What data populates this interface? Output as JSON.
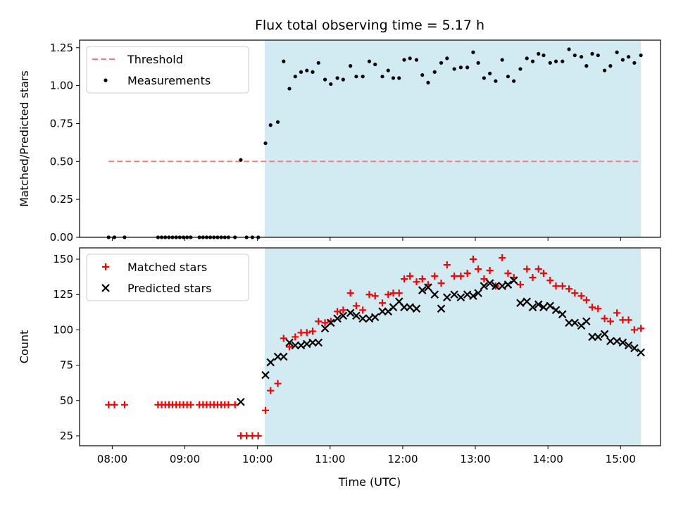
{
  "figure": {
    "title": "Flux total observing time = 5.17 h",
    "xlabel": "Time (UTC)"
  },
  "colors": {
    "shade": "#add8e6",
    "threshold": "#f08080",
    "matched": "#ff0000",
    "predicted": "#000000"
  },
  "chart_data": [
    {
      "type": "scatter",
      "panel": "top",
      "ylabel": "Matched/Predicted stars",
      "xlim_hours": [
        7.55,
        15.55
      ],
      "ylim": [
        0,
        1.3
      ],
      "xticks_hours": [
        8,
        9,
        10,
        11,
        12,
        13,
        14,
        15
      ],
      "xtick_labels": [
        "08:00",
        "09:00",
        "10:00",
        "11:00",
        "12:00",
        "13:00",
        "14:00",
        "15:00"
      ],
      "yticks": [
        0,
        0.25,
        0.5,
        0.75,
        1.0,
        1.25
      ],
      "ytick_labels": [
        "0.00",
        "0.25",
        "0.50",
        "0.75",
        "1.00",
        "1.25"
      ],
      "shaded_span_hours": [
        10.1,
        15.28
      ],
      "legend": {
        "location": "upper left",
        "entries": [
          "Threshold",
          "Measurements"
        ]
      },
      "threshold": {
        "name": "Threshold",
        "value": 0.5,
        "x_hours": [
          7.95,
          15.28
        ],
        "style": "dashed"
      },
      "series": [
        {
          "name": "Measurements",
          "marker": "dot",
          "x_hours": [
            7.95,
            8.03,
            8.17,
            8.63,
            8.68,
            8.73,
            8.78,
            8.83,
            8.88,
            8.93,
            8.98,
            9.03,
            9.08,
            9.2,
            9.25,
            9.3,
            9.35,
            9.4,
            9.45,
            9.5,
            9.55,
            9.6,
            9.69,
            9.77,
            9.85,
            9.93,
            10.01,
            10.11,
            10.18,
            10.28,
            10.36,
            10.44,
            10.52,
            10.6,
            10.68,
            10.76,
            10.84,
            10.93,
            11.01,
            11.1,
            11.18,
            11.28,
            11.36,
            11.45,
            11.54,
            11.62,
            11.72,
            11.8,
            11.87,
            11.95,
            12.02,
            12.1,
            12.19,
            12.27,
            12.35,
            12.44,
            12.53,
            12.61,
            12.71,
            12.8,
            12.89,
            12.97,
            13.04,
            13.12,
            13.2,
            13.28,
            13.37,
            13.45,
            13.53,
            13.62,
            13.71,
            13.79,
            13.87,
            13.94,
            14.03,
            14.11,
            14.2,
            14.29,
            14.37,
            14.46,
            14.53,
            14.61,
            14.69,
            14.78,
            14.86,
            14.95,
            15.03,
            15.11,
            15.19,
            15.28
          ],
          "y": [
            0,
            0,
            0,
            0,
            0,
            0,
            0,
            0,
            0,
            0,
            0,
            0,
            0,
            0,
            0,
            0,
            0,
            0,
            0,
            0,
            0,
            0,
            0,
            0.51,
            0,
            0,
            0,
            0.62,
            0.74,
            0.76,
            1.16,
            0.98,
            1.06,
            1.09,
            1.1,
            1.09,
            1.15,
            1.04,
            1.01,
            1.05,
            1.04,
            1.13,
            1.06,
            1.06,
            1.16,
            1.14,
            1.06,
            1.1,
            1.05,
            1.05,
            1.17,
            1.18,
            1.17,
            1.07,
            1.02,
            1.09,
            1.15,
            1.18,
            1.11,
            1.12,
            1.12,
            1.22,
            1.15,
            1.05,
            1.08,
            1.03,
            1.17,
            1.06,
            1.03,
            1.11,
            1.18,
            1.16,
            1.21,
            1.2,
            1.15,
            1.16,
            1.16,
            1.24,
            1.2,
            1.19,
            1.13,
            1.21,
            1.2,
            1.1,
            1.13,
            1.22,
            1.17,
            1.19,
            1.15,
            1.2
          ]
        }
      ]
    },
    {
      "type": "scatter",
      "panel": "bottom",
      "ylabel": "Count",
      "xlim_hours": [
        7.55,
        15.55
      ],
      "ylim": [
        18,
        158
      ],
      "xticks_hours": [
        8,
        9,
        10,
        11,
        12,
        13,
        14,
        15
      ],
      "xtick_labels": [
        "08:00",
        "09:00",
        "10:00",
        "11:00",
        "12:00",
        "13:00",
        "14:00",
        "15:00"
      ],
      "yticks": [
        25,
        50,
        75,
        100,
        125,
        150
      ],
      "ytick_labels": [
        "25",
        "50",
        "75",
        "100",
        "125",
        "150"
      ],
      "shaded_span_hours": [
        10.1,
        15.28
      ],
      "legend": {
        "location": "upper left",
        "entries": [
          "Matched stars",
          "Predicted stars"
        ]
      },
      "series": [
        {
          "name": "Matched stars",
          "marker": "plus",
          "x_hours": [
            7.95,
            8.03,
            8.17,
            8.63,
            8.68,
            8.73,
            8.78,
            8.83,
            8.88,
            8.93,
            8.98,
            9.03,
            9.08,
            9.2,
            9.25,
            9.3,
            9.35,
            9.4,
            9.45,
            9.5,
            9.55,
            9.6,
            9.69,
            9.77,
            9.85,
            9.93,
            10.01,
            10.11,
            10.18,
            10.28,
            10.36,
            10.44,
            10.52,
            10.6,
            10.68,
            10.76,
            10.84,
            10.93,
            11.01,
            11.1,
            11.18,
            11.28,
            11.36,
            11.45,
            11.54,
            11.62,
            11.72,
            11.8,
            11.87,
            11.95,
            12.02,
            12.1,
            12.19,
            12.27,
            12.35,
            12.44,
            12.53,
            12.61,
            12.71,
            12.8,
            12.89,
            12.97,
            13.04,
            13.12,
            13.2,
            13.28,
            13.37,
            13.45,
            13.53,
            13.62,
            13.71,
            13.79,
            13.87,
            13.94,
            14.03,
            14.11,
            14.2,
            14.29,
            14.37,
            14.46,
            14.53,
            14.61,
            14.69,
            14.78,
            14.86,
            14.95,
            15.03,
            15.11,
            15.19,
            15.28
          ],
          "y": [
            47,
            47,
            47,
            47,
            47,
            47,
            47,
            47,
            47,
            47,
            47,
            47,
            47,
            47,
            47,
            47,
            47,
            47,
            47,
            47,
            47,
            47,
            47,
            25,
            25,
            25,
            25,
            43,
            57,
            62,
            94,
            88,
            95,
            98,
            98,
            99,
            106,
            105,
            106,
            113,
            114,
            126,
            117,
            114,
            125,
            124,
            119,
            125,
            126,
            126,
            136,
            138,
            134,
            136,
            132,
            138,
            133,
            146,
            138,
            138,
            140,
            150,
            143,
            136,
            142,
            131,
            151,
            140,
            137,
            132,
            143,
            137,
            143,
            140,
            135,
            131,
            131,
            129,
            126,
            124,
            121,
            116,
            115,
            108,
            106,
            112,
            107,
            107,
            100,
            101
          ]
        },
        {
          "name": "Predicted stars",
          "marker": "x",
          "x_hours": [
            9.77,
            10.11,
            10.18,
            10.28,
            10.36,
            10.44,
            10.52,
            10.6,
            10.68,
            10.76,
            10.84,
            10.93,
            11.01,
            11.1,
            11.18,
            11.28,
            11.36,
            11.45,
            11.54,
            11.62,
            11.72,
            11.8,
            11.87,
            11.95,
            12.02,
            12.1,
            12.19,
            12.27,
            12.35,
            12.44,
            12.53,
            12.61,
            12.71,
            12.8,
            12.89,
            12.97,
            13.04,
            13.12,
            13.2,
            13.28,
            13.37,
            13.45,
            13.53,
            13.62,
            13.71,
            13.79,
            13.87,
            13.94,
            14.03,
            14.11,
            14.2,
            14.29,
            14.37,
            14.46,
            14.53,
            14.61,
            14.69,
            14.78,
            14.86,
            14.95,
            15.03,
            15.11,
            15.19,
            15.28
          ],
          "y": [
            49,
            68,
            77,
            81,
            81,
            91,
            89,
            89,
            90,
            91,
            91,
            101,
            105,
            108,
            110,
            112,
            110,
            108,
            108,
            109,
            113,
            113,
            116,
            120,
            116,
            116,
            115,
            128,
            130,
            125,
            115,
            123,
            125,
            123,
            125,
            124,
            126,
            131,
            133,
            131,
            131,
            132,
            135,
            119,
            120,
            116,
            118,
            116,
            117,
            114,
            111,
            105,
            105,
            103,
            106,
            95,
            95,
            97,
            92,
            92,
            91,
            89,
            87,
            84
          ]
        }
      ]
    }
  ]
}
